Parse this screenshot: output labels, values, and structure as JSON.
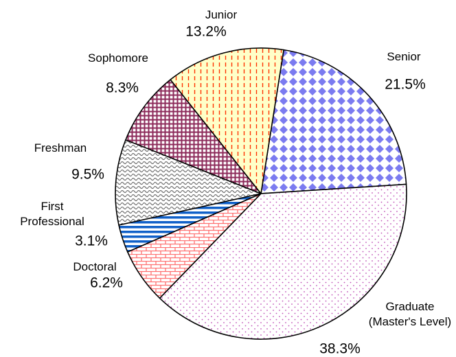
{
  "chart_data": {
    "type": "pie",
    "categories": [
      "Senior",
      "Graduate (Master's Level)",
      "Doctoral",
      "First Professional",
      "Freshman",
      "Sophomore",
      "Junior"
    ],
    "values": [
      21.5,
      38.3,
      6.2,
      3.1,
      9.5,
      8.3,
      13.2
    ],
    "value_labels": [
      "21.5%",
      "38.3%",
      "6.2%",
      "3.1%",
      "9.5%",
      "8.3%",
      "13.2%"
    ],
    "colors": [
      "#7b7bf0",
      "#c050b8",
      "#ff7070",
      "#1060c8",
      "#707070",
      "#8c2a5a",
      "#ff3000"
    ]
  }
}
